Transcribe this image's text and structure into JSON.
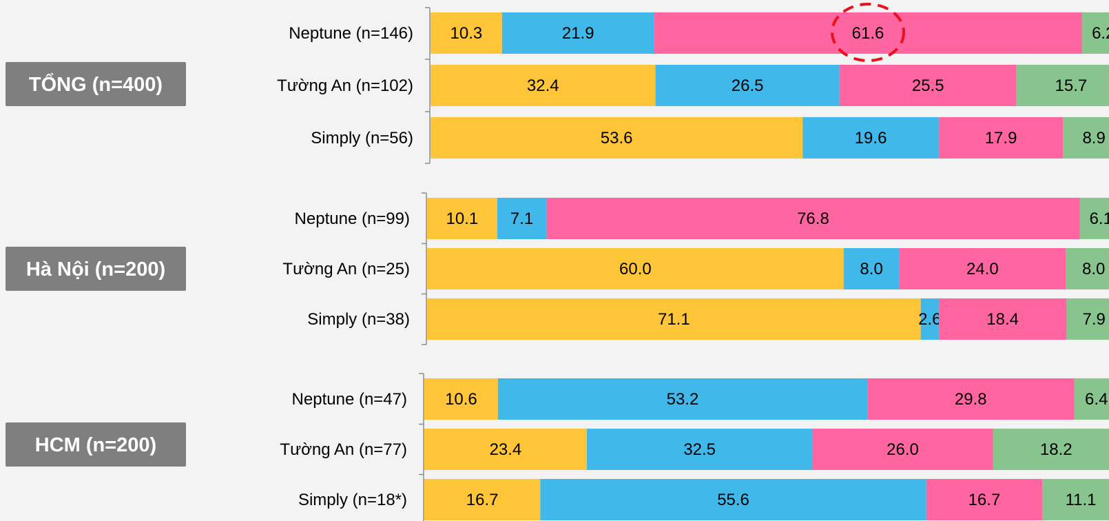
{
  "colors": {
    "segment_1": "#fec538",
    "segment_2": "#41b8ea",
    "segment_3": "#ff66a1",
    "segment_4": "#88c58e",
    "group_badge": "#7f7f7f",
    "highlight": "#e8121f"
  },
  "chart_data": {
    "type": "bar",
    "orientation": "horizontal",
    "stacked": true,
    "unit": "%",
    "groups": [
      {
        "label": "TỔNG (n=400)",
        "rows": [
          {
            "label": "Neptune (n=146)",
            "values": [
              10.3,
              21.9,
              61.6,
              6.2
            ],
            "labels": [
              "10.3",
              "21.9",
              "61.6",
              "6.2"
            ],
            "highlight_segment": 2
          },
          {
            "label": "Tường An (n=102)",
            "values": [
              32.4,
              26.5,
              25.5,
              15.7
            ],
            "labels": [
              "32.4",
              "26.5",
              "25.5",
              "15.7"
            ]
          },
          {
            "label": "Simply (n=56)",
            "values": [
              53.6,
              19.6,
              17.9,
              8.9
            ],
            "labels": [
              "53.6",
              "19.6",
              "17.9",
              "8.9"
            ]
          }
        ]
      },
      {
        "label": "Hà Nội (n=200)",
        "rows": [
          {
            "label": "Neptune (n=99)",
            "values": [
              10.1,
              7.1,
              76.8,
              6.1
            ],
            "labels": [
              "10.1",
              "7.1",
              "76.8",
              "6.1"
            ]
          },
          {
            "label": "Tường An (n=25)",
            "values": [
              60.0,
              8.0,
              24.0,
              8.0
            ],
            "labels": [
              "60.0",
              "8.0",
              "24.0",
              "8.0"
            ]
          },
          {
            "label": "Simply (n=38)",
            "values": [
              71.1,
              2.6,
              18.4,
              7.9
            ],
            "labels": [
              "71.1",
              "2.6",
              "18.4",
              "7.9"
            ]
          }
        ]
      },
      {
        "label": "HCM (n=200)",
        "rows": [
          {
            "label": "Neptune (n=47)",
            "values": [
              10.6,
              53.2,
              29.8,
              6.4
            ],
            "labels": [
              "10.6",
              "53.2",
              "29.8",
              "6.4"
            ]
          },
          {
            "label": "Tường An (n=77)",
            "values": [
              23.4,
              32.5,
              26.0,
              18.2
            ],
            "labels": [
              "23.4",
              "32.5",
              "26.0",
              "18.2"
            ]
          },
          {
            "label": "Simply (n=18*)",
            "values": [
              16.7,
              55.6,
              16.7,
              11.1
            ],
            "labels": [
              "16.7",
              "55.6",
              "16.7",
              "11.1"
            ]
          }
        ]
      }
    ]
  }
}
